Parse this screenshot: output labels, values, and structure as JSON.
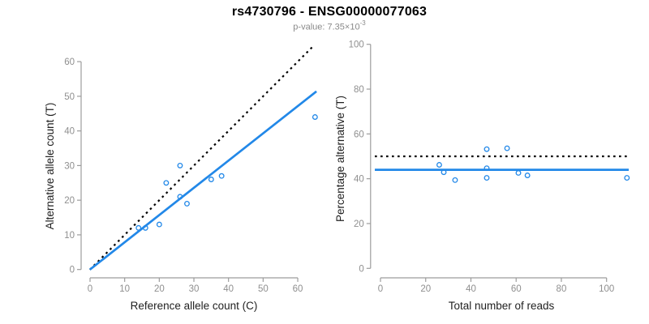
{
  "header": {
    "title": "rs4730796 - ENSG00000077063",
    "pvalue_prefix": "p-value: 7.35×10",
    "pvalue_exponent": "-3"
  },
  "colors": {
    "accent_blue": "#2288E8",
    "dotted_black": "#000000",
    "axis_gray": "#9C9C9C",
    "tick_label_gray": "#8F8F8F",
    "axis_title_color": "#1F1F1F",
    "title_color": "#000000",
    "subtitle_gray": "#8A8A8A",
    "background": "#FFFFFF"
  },
  "chart_data": [
    {
      "type": "scatter",
      "title": "rs4730796 - ENSG00000077063",
      "xlabel": "Reference allele count (C)",
      "ylabel": "Alternative allele count (T)",
      "xlim": [
        0,
        65
      ],
      "ylim": [
        0,
        64
      ],
      "xticks": [
        0,
        10,
        20,
        30,
        40,
        50,
        60
      ],
      "yticks": [
        0,
        10,
        20,
        30,
        40,
        50,
        60
      ],
      "grid": "off",
      "legend": "none",
      "point_color": "#2288E8",
      "points": [
        [
          14,
          12
        ],
        [
          16,
          12
        ],
        [
          20,
          13
        ],
        [
          22,
          25
        ],
        [
          26,
          21
        ],
        [
          26,
          30
        ],
        [
          28,
          19
        ],
        [
          35,
          26
        ],
        [
          38,
          27
        ],
        [
          65,
          44
        ]
      ],
      "lines": [
        {
          "name": "identity-line",
          "slope": 1,
          "intercept": 0,
          "style": "dotted",
          "color": "#000000"
        },
        {
          "name": "fit-line",
          "slope": 0.786,
          "intercept": 0,
          "style": "solid",
          "color": "#2288E8"
        }
      ]
    },
    {
      "type": "scatter",
      "xlabel": "Total number of reads",
      "ylabel": "Percentage alternative (T)",
      "xlim": [
        0,
        109
      ],
      "ylim": [
        0,
        100
      ],
      "xticks": [
        0,
        20,
        40,
        60,
        80,
        100
      ],
      "yticks": [
        0,
        20,
        40,
        60,
        80,
        100
      ],
      "grid": "off",
      "legend": "none",
      "point_color": "#2288E8",
      "points": [
        [
          26,
          46.2
        ],
        [
          28,
          42.9
        ],
        [
          33,
          39.4
        ],
        [
          47,
          40.4
        ],
        [
          47,
          44.7
        ],
        [
          47,
          53.2
        ],
        [
          56,
          53.6
        ],
        [
          61,
          42.6
        ],
        [
          65,
          41.5
        ],
        [
          109,
          40.4
        ]
      ],
      "lines": [
        {
          "name": "null-line",
          "h": 50,
          "style": "dotted",
          "color": "#000000"
        },
        {
          "name": "fit-line",
          "h": 44,
          "style": "solid",
          "color": "#2288E8"
        }
      ]
    }
  ]
}
